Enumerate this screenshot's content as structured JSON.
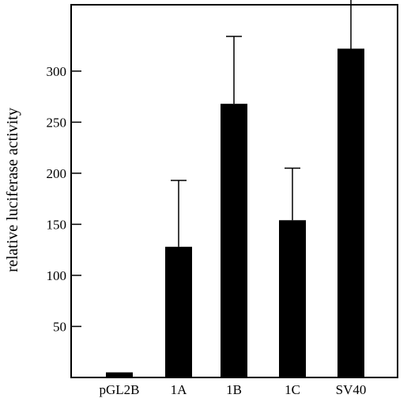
{
  "chart_data": {
    "type": "bar",
    "title": "",
    "xlabel": "",
    "ylabel": "relative luciferase activity",
    "categories": [
      "pGL2B",
      "1A",
      "1B",
      "1C",
      "SV40"
    ],
    "values": [
      5,
      128,
      268,
      154,
      322
    ],
    "error_upper": [
      0,
      65,
      66,
      51,
      53
    ],
    "yticks": [
      50,
      100,
      150,
      200,
      250,
      300
    ],
    "ylim": [
      0,
      365
    ],
    "grid": false,
    "legend": "none",
    "bar_color": "#000000"
  }
}
